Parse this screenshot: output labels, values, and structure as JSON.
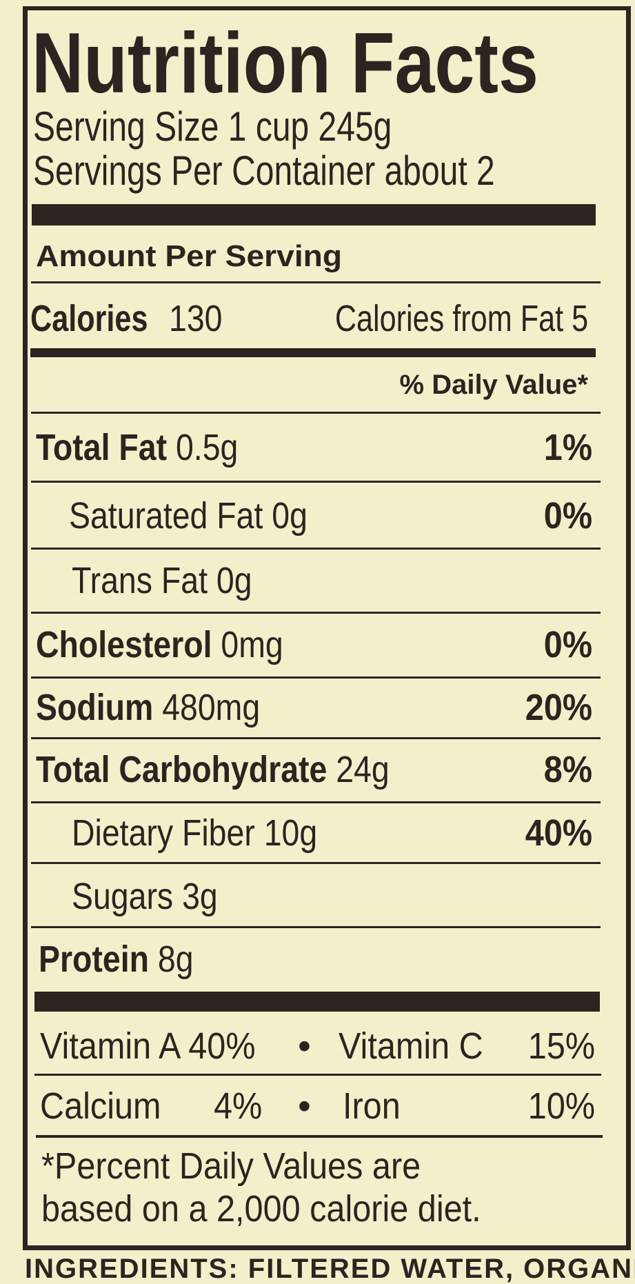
{
  "title": "Nutrition Facts",
  "serving_size": "Serving Size 1 cup 245g",
  "servings_per_container": "Servings Per Container about 2",
  "amount_per_serving": "Amount Per Serving",
  "calories": {
    "label": "Calories",
    "value": "130",
    "from_fat": "Calories from Fat 5"
  },
  "daily_value_header": "% Daily Value*",
  "nutrients": [
    {
      "name": "Total Fat",
      "amount": "0.5g",
      "dv": "1%"
    },
    {
      "name": "Saturated Fat",
      "amount": "0g",
      "dv": "0%"
    },
    {
      "name": "Trans Fat",
      "amount": "0g",
      "dv": ""
    },
    {
      "name": "Cholesterol",
      "amount": "0mg",
      "dv": "0%"
    },
    {
      "name": "Sodium",
      "amount": "480mg",
      "dv": "20%"
    },
    {
      "name": "Total Carbohydrate",
      "amount": "24g",
      "dv": "8%"
    },
    {
      "name": "Dietary Fiber",
      "amount": "10g",
      "dv": "40%"
    },
    {
      "name": "Sugars",
      "amount": "3g",
      "dv": ""
    },
    {
      "name": "Protein",
      "amount": "8g",
      "dv": ""
    }
  ],
  "vitamins": [
    {
      "name": "Vitamin A",
      "dv": "40%"
    },
    {
      "name": "Vitamin C",
      "dv": "15%"
    },
    {
      "name": "Calcium",
      "dv": "4%"
    },
    {
      "name": "Iron",
      "dv": "10%"
    }
  ],
  "bullet": "•",
  "footnote_line1": "*Percent Daily Values are",
  "footnote_line2": "based on a 2,000 calorie diet.",
  "ingredients_cutoff": "INGREDIENTS: FILTERED WATER, ORGANIC"
}
